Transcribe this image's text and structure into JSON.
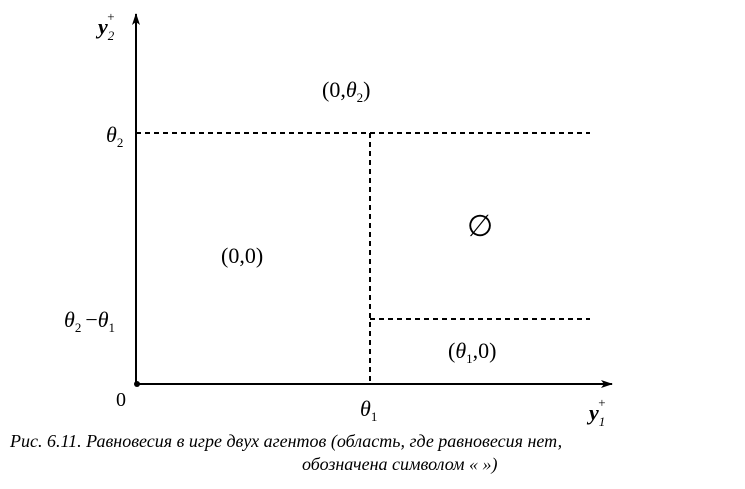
{
  "axes": {
    "y_axis_label": {
      "base": "y",
      "sub": "2",
      "sup": "+"
    },
    "x_axis_label": {
      "base": "y",
      "sub": "1",
      "sup": "+"
    },
    "origin_label": "0"
  },
  "ticks": {
    "theta2": {
      "base": "θ",
      "sub": "2"
    },
    "theta2_minus_theta1": {
      "a": "θ",
      "a_sub": "2",
      "op": "−",
      "b": "θ",
      "b_sub": "1"
    },
    "theta1": {
      "base": "θ",
      "sub": "1"
    }
  },
  "regions": {
    "zero_zero": "(0,0)",
    "zero_theta2": {
      "open": "(0,",
      "theta": "θ",
      "sub": "2",
      "close": ")"
    },
    "theta1_zero": {
      "open": "(",
      "theta": "θ",
      "sub": "1",
      "close": ",0)"
    },
    "empty_set": "∅"
  },
  "caption": {
    "line1": "Рис. 6.11. Равновесия в игре двух агентов (область, где равновесия нет,",
    "line2": "обозначена символом « »)"
  }
}
